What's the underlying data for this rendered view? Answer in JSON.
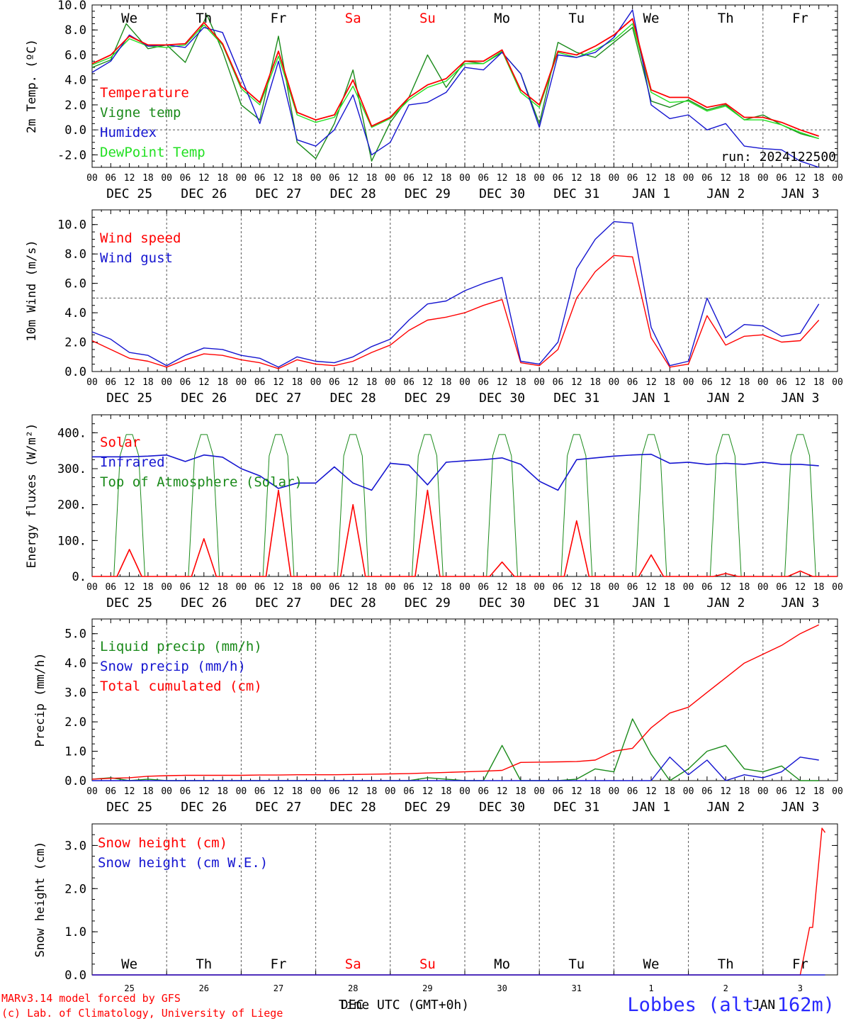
{
  "run_label": "run: 2024122500",
  "footer": {
    "credit1": "MARv3.14 model forced by GFS",
    "credit2": "(c) Lab. of Climatology, University of Liege",
    "xlabel": "Time UTC (GMT+0h)",
    "month_dec": "DEC",
    "month_jan": "JAN",
    "station": "Lobbes (alt. 162m)"
  },
  "colors": {
    "red": "#ff0000",
    "green": "#1a8a1a",
    "blue": "#1515d0",
    "lime": "#22e022",
    "axis": "#000000",
    "grid": "#555555"
  },
  "weekdays": [
    {
      "label": "We",
      "color": "#000000"
    },
    {
      "label": "Th",
      "color": "#000000"
    },
    {
      "label": "Fr",
      "color": "#000000"
    },
    {
      "label": "Sa",
      "color": "#ff0000"
    },
    {
      "label": "Su",
      "color": "#ff0000"
    },
    {
      "label": "Mo",
      "color": "#000000"
    },
    {
      "label": "Tu",
      "color": "#000000"
    },
    {
      "label": "We",
      "color": "#000000"
    },
    {
      "label": "Th",
      "color": "#000000"
    },
    {
      "label": "Fr",
      "color": "#000000"
    }
  ],
  "date_labels": [
    "DEC 25",
    "DEC 26",
    "DEC 27",
    "DEC 28",
    "DEC 29",
    "DEC 30",
    "DEC 31",
    "JAN  1",
    "JAN  2",
    "JAN  3"
  ],
  "hour_labels": [
    "00",
    "06",
    "12",
    "18"
  ],
  "bottom_day_numbers": [
    "25",
    "26",
    "27",
    "28",
    "29",
    "30",
    "31",
    "1",
    "2",
    "3"
  ],
  "chart_data": [
    {
      "type": "line",
      "ylabel": "2m Temp. (ºC)",
      "ylim": [
        -3,
        10
      ],
      "yticks": [
        "-2.0",
        "0.0",
        "2.0",
        "4.0",
        "6.0",
        "8.0",
        "10.0"
      ],
      "ytick_values": [
        -2,
        0,
        2,
        4,
        6,
        8,
        10
      ],
      "refline": 0,
      "x_unit": "hours since Dec 25 00 UTC",
      "series": [
        {
          "name": "Temperature",
          "color": "#ff0000",
          "x": [
            0,
            6,
            12,
            18,
            24,
            30,
            36,
            42,
            48,
            54,
            60,
            66,
            72,
            78,
            84,
            90,
            96,
            102,
            108,
            114,
            120,
            126,
            132,
            138,
            144,
            150,
            156,
            162,
            168,
            174,
            180,
            186,
            192,
            198,
            204,
            210,
            216,
            222,
            228,
            234
          ],
          "values": [
            5.3,
            6.0,
            7.5,
            6.8,
            6.8,
            6.9,
            8.6,
            6.9,
            3.5,
            2.2,
            6.3,
            1.4,
            0.8,
            1.2,
            4.0,
            0.3,
            1.0,
            2.6,
            3.6,
            4.1,
            5.5,
            5.5,
            6.4,
            3.2,
            2.0,
            6.3,
            6.0,
            6.7,
            7.6,
            8.9,
            3.2,
            2.6,
            2.6,
            1.8,
            2.1,
            1.0,
            1.0,
            0.6,
            0.0,
            -0.5
          ]
        },
        {
          "name": "Vigne temp",
          "color": "#1a8a1a",
          "x": [
            0,
            6,
            11,
            18,
            24,
            30,
            37,
            42,
            48,
            54,
            60,
            66,
            72,
            78,
            84,
            90,
            96,
            102,
            108,
            114,
            120,
            126,
            132,
            138,
            144,
            150,
            156,
            162,
            168,
            174,
            180,
            186,
            192,
            198,
            204,
            210,
            216,
            222,
            228,
            234
          ],
          "values": [
            5.0,
            5.6,
            8.5,
            6.5,
            6.8,
            5.4,
            9.2,
            6.3,
            2.0,
            0.8,
            7.5,
            -1.0,
            -2.3,
            0.5,
            4.8,
            -2.5,
            0.6,
            2.6,
            6.0,
            3.4,
            5.5,
            5.3,
            6.2,
            4.5,
            0.5,
            7.0,
            6.2,
            5.8,
            7.0,
            8.2,
            2.3,
            1.8,
            2.4,
            1.6,
            2.0,
            0.8,
            1.2,
            0.4,
            -0.3,
            -0.7
          ]
        },
        {
          "name": "Humidex",
          "color": "#1515d0",
          "x": [
            0,
            6,
            12,
            18,
            24,
            30,
            36,
            42,
            48,
            54,
            60,
            66,
            72,
            78,
            84,
            90,
            96,
            102,
            108,
            114,
            120,
            126,
            132,
            138,
            144,
            150,
            156,
            162,
            168,
            174,
            180,
            186,
            192,
            198,
            204,
            210,
            216,
            222,
            228,
            234
          ],
          "values": [
            4.6,
            5.5,
            7.6,
            6.7,
            6.8,
            6.6,
            8.2,
            7.8,
            4.2,
            0.5,
            5.5,
            -0.8,
            -1.3,
            0.0,
            2.8,
            -2.0,
            -1.0,
            2.0,
            2.2,
            3.0,
            5.0,
            4.8,
            6.2,
            4.5,
            0.2,
            6.0,
            5.8,
            6.2,
            7.4,
            9.6,
            2.0,
            0.9,
            1.2,
            0.0,
            0.5,
            -1.3,
            -1.5,
            -1.6,
            -2.5,
            -3.0
          ]
        },
        {
          "name": "DewPoint Temp",
          "color": "#22e022",
          "x": [
            0,
            6,
            12,
            18,
            24,
            30,
            36,
            42,
            48,
            54,
            60,
            66,
            72,
            78,
            84,
            90,
            96,
            102,
            108,
            114,
            120,
            126,
            132,
            138,
            144,
            150,
            156,
            162,
            168,
            174,
            180,
            186,
            192,
            198,
            204,
            210,
            216,
            222,
            228,
            234
          ],
          "values": [
            5.2,
            5.8,
            7.3,
            6.7,
            6.6,
            6.8,
            8.4,
            6.8,
            3.3,
            2.0,
            5.9,
            1.2,
            0.6,
            1.0,
            3.5,
            0.2,
            0.9,
            2.4,
            3.4,
            3.9,
            5.3,
            5.3,
            6.3,
            3.0,
            1.8,
            6.2,
            5.8,
            6.4,
            7.2,
            8.5,
            3.0,
            2.2,
            2.3,
            1.5,
            1.9,
            0.8,
            0.8,
            0.4,
            -0.2,
            -0.7
          ]
        }
      ]
    },
    {
      "type": "line",
      "ylabel": "10m Wind (m/s)",
      "ylim": [
        0,
        11
      ],
      "yticks": [
        "0.0",
        "2.0",
        "4.0",
        "6.0",
        "8.0",
        "10.0"
      ],
      "ytick_values": [
        0,
        2,
        4,
        6,
        8,
        10
      ],
      "refline": 5,
      "series": [
        {
          "name": "Wind speed",
          "color": "#ff0000",
          "x": [
            0,
            6,
            12,
            18,
            24,
            30,
            36,
            42,
            48,
            54,
            60,
            66,
            72,
            78,
            84,
            90,
            96,
            102,
            108,
            114,
            120,
            126,
            132,
            138,
            144,
            150,
            156,
            162,
            168,
            174,
            180,
            186,
            192,
            198,
            204,
            210,
            216,
            222,
            228,
            234
          ],
          "values": [
            2.1,
            1.5,
            0.9,
            0.7,
            0.3,
            0.8,
            1.2,
            1.1,
            0.8,
            0.6,
            0.2,
            0.8,
            0.5,
            0.4,
            0.7,
            1.3,
            1.8,
            2.8,
            3.5,
            3.7,
            4.0,
            4.5,
            4.9,
            0.6,
            0.4,
            1.5,
            5.0,
            6.8,
            7.9,
            7.8,
            2.3,
            0.3,
            0.5,
            3.8,
            1.8,
            2.4,
            2.5,
            2.0,
            2.1,
            3.5
          ]
        },
        {
          "name": "Wind gust",
          "color": "#1515d0",
          "x": [
            0,
            6,
            12,
            18,
            24,
            30,
            36,
            42,
            48,
            54,
            60,
            66,
            72,
            78,
            84,
            90,
            96,
            102,
            108,
            114,
            120,
            126,
            132,
            138,
            144,
            150,
            156,
            162,
            168,
            174,
            180,
            186,
            192,
            198,
            204,
            210,
            216,
            222,
            228,
            234
          ],
          "values": [
            2.7,
            2.2,
            1.3,
            1.1,
            0.4,
            1.1,
            1.6,
            1.5,
            1.1,
            0.9,
            0.3,
            1.0,
            0.7,
            0.6,
            1.0,
            1.7,
            2.2,
            3.5,
            4.6,
            4.8,
            5.5,
            6.0,
            6.4,
            0.7,
            0.5,
            2.0,
            7.0,
            9.0,
            10.2,
            10.1,
            3.0,
            0.4,
            0.7,
            5.0,
            2.3,
            3.2,
            3.1,
            2.4,
            2.6,
            4.6
          ]
        }
      ]
    },
    {
      "type": "line",
      "ylabel": "Energy fluxes (W/m²)",
      "ylim": [
        0,
        450
      ],
      "yticks": [
        "0.",
        "100.",
        "200.",
        "300.",
        "400."
      ],
      "ytick_values": [
        0,
        100,
        200,
        300,
        400
      ],
      "series": [
        {
          "name": "Solar",
          "color": "#ff0000",
          "peaks": [
            75,
            105,
            240,
            200,
            240,
            40,
            155,
            60,
            8,
            15
          ]
        },
        {
          "name": "Infrared",
          "color": "#1515d0",
          "x": [
            0,
            12,
            18,
            24,
            30,
            36,
            42,
            48,
            54,
            60,
            66,
            72,
            78,
            84,
            90,
            96,
            102,
            108,
            114,
            120,
            126,
            132,
            138,
            144,
            150,
            156,
            162,
            168,
            174,
            180,
            186,
            192,
            198,
            204,
            210,
            216,
            222,
            228,
            234
          ],
          "values": [
            333,
            333,
            335,
            338,
            320,
            338,
            332,
            300,
            280,
            245,
            260,
            260,
            305,
            260,
            240,
            315,
            310,
            255,
            318,
            322,
            325,
            330,
            312,
            265,
            240,
            325,
            330,
            335,
            338,
            340,
            315,
            318,
            312,
            315,
            312,
            318,
            312,
            312,
            308
          ]
        },
        {
          "name": "Top of Atmosphere (Solar)",
          "color": "#1a8a1a",
          "peak": 395
        }
      ]
    },
    {
      "type": "line",
      "ylabel": "Precip (mm/h)",
      "ylim": [
        0,
        5.5
      ],
      "yticks": [
        "0.0",
        "1.0",
        "2.0",
        "3.0",
        "4.0",
        "5.0"
      ],
      "ytick_values": [
        0,
        1,
        2,
        3,
        4,
        5
      ],
      "series": [
        {
          "name": "Liquid precip (mm/h)",
          "color": "#1a8a1a",
          "x": [
            0,
            6,
            12,
            18,
            24,
            30,
            36,
            42,
            48,
            54,
            60,
            66,
            72,
            78,
            84,
            90,
            96,
            102,
            108,
            114,
            120,
            126,
            132,
            138,
            144,
            150,
            156,
            162,
            168,
            174,
            180,
            186,
            192,
            198,
            204,
            210,
            216,
            222,
            228,
            234
          ],
          "values": [
            0.05,
            0.1,
            0.0,
            0.05,
            0.0,
            0.0,
            0.0,
            0.0,
            0.0,
            0.0,
            0.0,
            0.0,
            0.0,
            0.0,
            0.0,
            0.0,
            0.0,
            0.0,
            0.1,
            0.05,
            0.0,
            0.0,
            1.2,
            0.0,
            0.0,
            0.0,
            0.05,
            0.4,
            0.3,
            2.1,
            0.9,
            0.0,
            0.4,
            1.0,
            1.2,
            0.4,
            0.3,
            0.5,
            0.0,
            0.0
          ]
        },
        {
          "name": "Snow precip (mm/h)",
          "color": "#1515d0",
          "x": [
            0,
            6,
            12,
            18,
            24,
            30,
            36,
            42,
            48,
            54,
            60,
            66,
            72,
            78,
            84,
            90,
            96,
            102,
            108,
            114,
            120,
            126,
            132,
            138,
            144,
            150,
            156,
            162,
            168,
            174,
            180,
            186,
            192,
            198,
            204,
            210,
            216,
            222,
            228,
            234
          ],
          "values": [
            0.0,
            0.0,
            0.0,
            0.0,
            0.0,
            0.0,
            0.0,
            0.0,
            0.0,
            0.0,
            0.0,
            0.0,
            0.0,
            0.0,
            0.0,
            0.0,
            0.0,
            0.0,
            0.0,
            0.0,
            0.0,
            0.0,
            0.0,
            0.0,
            0.0,
            0.0,
            0.0,
            0.0,
            0.0,
            0.0,
            0.0,
            0.8,
            0.2,
            0.7,
            0.0,
            0.2,
            0.1,
            0.3,
            0.8,
            0.7
          ]
        },
        {
          "name": "Total cumulated (cm)",
          "color": "#ff0000",
          "x": [
            0,
            6,
            12,
            18,
            24,
            30,
            36,
            42,
            48,
            54,
            60,
            66,
            72,
            78,
            84,
            90,
            96,
            102,
            108,
            114,
            120,
            126,
            132,
            138,
            144,
            150,
            156,
            162,
            168,
            174,
            180,
            186,
            192,
            198,
            204,
            210,
            216,
            222,
            228,
            234
          ],
          "values": [
            0.05,
            0.08,
            0.1,
            0.15,
            0.17,
            0.18,
            0.18,
            0.18,
            0.18,
            0.19,
            0.19,
            0.2,
            0.2,
            0.2,
            0.21,
            0.22,
            0.23,
            0.24,
            0.26,
            0.28,
            0.3,
            0.32,
            0.35,
            0.62,
            0.63,
            0.64,
            0.65,
            0.7,
            1.0,
            1.1,
            1.8,
            2.3,
            2.5,
            3.0,
            3.5,
            4.0,
            4.3,
            4.6,
            5.0,
            5.3
          ]
        }
      ]
    },
    {
      "type": "line",
      "ylabel": "Snow height (cm)",
      "ylim": [
        0,
        3.5
      ],
      "yticks": [
        "0.0",
        "1.0",
        "2.0",
        "3.0"
      ],
      "ytick_values": [
        0,
        1,
        2,
        3
      ],
      "series": [
        {
          "name": "Snow height (cm)",
          "color": "#ff0000",
          "x": [
            0,
            228,
            231,
            232,
            235,
            236
          ],
          "values": [
            0,
            0,
            1.1,
            1.1,
            3.4,
            3.3
          ]
        },
        {
          "name": "Snow height (cm W.E.)",
          "color": "#1515d0",
          "x": [
            0,
            236
          ],
          "values": [
            0,
            0
          ]
        }
      ]
    }
  ]
}
